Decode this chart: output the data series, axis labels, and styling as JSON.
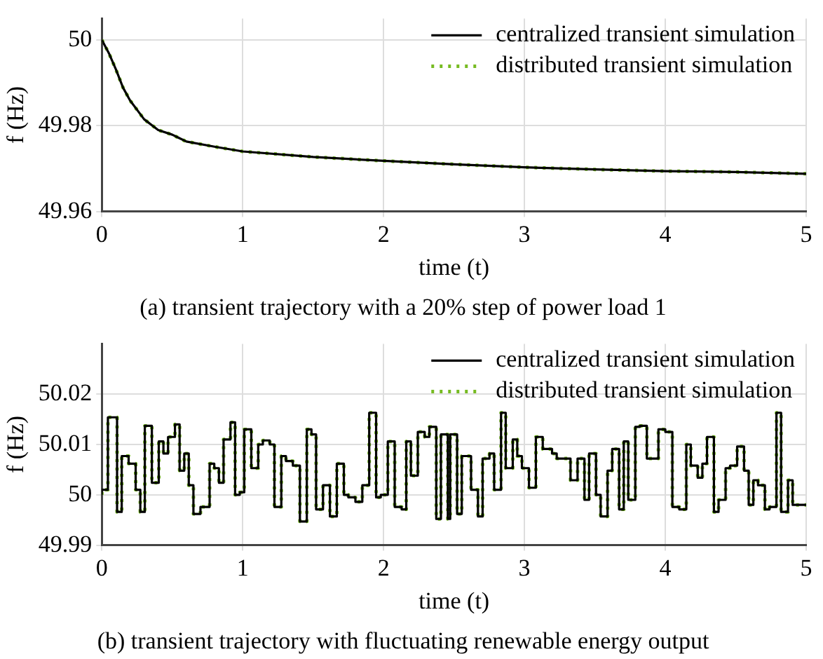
{
  "chart_data": [
    {
      "type": "line",
      "title": "(a) transient trajectory with a 20% step of power load 1",
      "xlabel": "time (t)",
      "ylabel": "f (Hz)",
      "x": [
        0,
        0.05,
        0.1,
        0.15,
        0.2,
        0.3,
        0.4,
        0.5,
        0.6,
        0.8,
        1,
        1.5,
        2,
        2.5,
        3,
        3.5,
        4,
        4.5,
        5
      ],
      "series": [
        {
          "name": "centralized transient simulation",
          "color": "#000000",
          "line_style": "solid",
          "values": [
            50,
            49.9969,
            49.9931,
            49.9889,
            49.9859,
            49.9815,
            49.979,
            49.9779,
            49.9763,
            49.9751,
            49.974,
            49.9727,
            49.9718,
            49.971,
            49.9703,
            49.9698,
            49.9694,
            49.9692,
            49.9688
          ]
        },
        {
          "name": "distributed transient simulation",
          "color": "#77bb22",
          "line_style": "dotted",
          "values": [
            50,
            49.9969,
            49.9931,
            49.9889,
            49.9859,
            49.9815,
            49.979,
            49.9779,
            49.9763,
            49.9751,
            49.974,
            49.9727,
            49.9718,
            49.971,
            49.9703,
            49.9698,
            49.9694,
            49.9692,
            49.9688
          ]
        }
      ],
      "xlim": [
        0,
        5
      ],
      "xticks": [
        0,
        1,
        2,
        3,
        4,
        5
      ],
      "ylim": [
        49.96,
        50.005
      ],
      "yticks": [
        49.96,
        49.98,
        50
      ],
      "grid": true,
      "legend": "top right",
      "marker": "none"
    },
    {
      "type": "step",
      "title": "(b) transient trajectory with fluctuating renewable energy output",
      "xlabel": "time (t)",
      "ylabel": "f (Hz)",
      "x": [
        0,
        0.043,
        0.108,
        0.141,
        0.19,
        0.24,
        0.273,
        0.305,
        0.355,
        0.404,
        0.437,
        0.47,
        0.519,
        0.552,
        0.585,
        0.617,
        0.65,
        0.7,
        0.765,
        0.798,
        0.831,
        0.864,
        0.913,
        0.946,
        0.979,
        1.011,
        1.061,
        1.11,
        1.143,
        1.192,
        1.225,
        1.274,
        1.307,
        1.356,
        1.406,
        1.455,
        1.488,
        1.521,
        1.57,
        1.619,
        1.668,
        1.718,
        1.75,
        1.8,
        1.849,
        1.898,
        1.947,
        1.98,
        2.03,
        2.079,
        2.128,
        2.161,
        2.194,
        2.243,
        2.292,
        2.325,
        2.374,
        2.407,
        2.456,
        2.473,
        2.522,
        2.555,
        2.621,
        2.67,
        2.703,
        2.752,
        2.785,
        2.834,
        2.867,
        2.917,
        2.949,
        2.982,
        3.032,
        3.081,
        3.13,
        3.196,
        3.229,
        3.327,
        3.377,
        3.426,
        3.459,
        3.508,
        3.541,
        3.59,
        3.623,
        3.672,
        3.705,
        3.737,
        3.787,
        3.82,
        3.869,
        3.951,
        4,
        4.05,
        4.099,
        4.149,
        4.181,
        4.23,
        4.263,
        4.296,
        4.345,
        4.378,
        4.428,
        4.46,
        4.51,
        4.559,
        4.592,
        4.625,
        4.658,
        4.707,
        4.74,
        4.789,
        4.822,
        4.871,
        4.904,
        4.954,
        5
      ],
      "series": [
        {
          "name": "centralized transient simulation",
          "color": "#000000",
          "line_style": "solid",
          "values": [
            50,
            50.001,
            50.0154,
            49.9966,
            50.0077,
            50.0062,
            50.001,
            49.9966,
            50.0137,
            50.0024,
            50.0106,
            50.0082,
            50.0115,
            50.014,
            50.0048,
            50.0082,
            50.0019,
            49.9962,
            49.9976,
            50.0062,
            50.0053,
            50.0024,
            50.011,
            50.0144,
            50,
            50.0005,
            50.013,
            50.0053,
            50.01,
            50.0108,
            50.01,
            49.9976,
            50.0077,
            50.0067,
            50.0058,
            49.9947,
            50.013,
            50.012,
            49.9971,
            50.0019,
            49.9957,
            50.0062,
            50,
            49.9995,
            49.9986,
            50.0019,
            50.0163,
            49.9995,
            50,
            50.0106,
            49.9976,
            49.9971,
            50.0106,
            50.0038,
            50.0125,
            50.0115,
            50.0135,
            49.9952,
            50.012,
            49.9952,
            50.012,
            49.9962,
            50.0077,
            50.001,
            49.9957,
            50.0072,
            50.0082,
            50.001,
            50.0163,
            50.0053,
            50.011,
            50.0077,
            50.0053,
            50.0014,
            50.0115,
            50.0091,
            50.0082,
            50.0072,
            50.0029,
            50.0072,
            49.999,
            50.0082,
            50,
            49.9957,
            50.0048,
            50.0091,
            49.9971,
            50.0106,
            49.999,
            50.0135,
            50.0137,
            50.0072,
            50.013,
            50.0125,
            49.9976,
            49.9971,
            50.01,
            50.0058,
            50.0034,
            50.0062,
            50.0115,
            49.9966,
            49.999,
            50.0053,
            50.0058,
            50.0096,
            50.0048,
            49.998,
            50.0029,
            50.0019,
            49.9971,
            49.9976,
            50.0163,
            49.9966,
            50.0029,
            49.998,
            49.998
          ]
        },
        {
          "name": "distributed transient simulation",
          "color": "#77bb22",
          "line_style": "dotted",
          "values": [
            50,
            50.001,
            50.0154,
            49.9966,
            50.0077,
            50.0062,
            50.001,
            49.9966,
            50.0137,
            50.0024,
            50.0106,
            50.0082,
            50.0115,
            50.014,
            50.0048,
            50.0082,
            50.0019,
            49.9962,
            49.9976,
            50.0062,
            50.0053,
            50.0024,
            50.011,
            50.0144,
            50,
            50.0005,
            50.013,
            50.0053,
            50.01,
            50.0108,
            50.01,
            49.9976,
            50.0077,
            50.0067,
            50.0058,
            49.9947,
            50.013,
            50.012,
            49.9971,
            50.0019,
            49.9957,
            50.0062,
            50,
            49.9995,
            49.9986,
            50.0019,
            50.0163,
            49.9995,
            50,
            50.0106,
            49.9976,
            49.9971,
            50.0106,
            50.0038,
            50.0125,
            50.0115,
            50.0135,
            49.9952,
            50.012,
            49.9952,
            50.012,
            49.9962,
            50.0077,
            50.001,
            49.9957,
            50.0072,
            50.0082,
            50.001,
            50.0163,
            50.0053,
            50.011,
            50.0077,
            50.0053,
            50.0014,
            50.0115,
            50.0091,
            50.0082,
            50.0072,
            50.0029,
            50.0072,
            49.999,
            50.0082,
            50,
            49.9957,
            50.0048,
            50.0091,
            49.9971,
            50.0106,
            49.999,
            50.0135,
            50.0137,
            50.0072,
            50.013,
            50.0125,
            49.9976,
            49.9971,
            50.01,
            50.0058,
            50.0034,
            50.0062,
            50.0115,
            49.9966,
            49.999,
            50.0053,
            50.0058,
            50.0096,
            50.0048,
            49.998,
            50.0029,
            50.0019,
            49.9971,
            49.9976,
            50.0163,
            49.9966,
            50.0029,
            49.998,
            49.998
          ]
        }
      ],
      "xlim": [
        0,
        5
      ],
      "xticks": [
        0,
        1,
        2,
        3,
        4,
        5
      ],
      "ylim": [
        49.99,
        50.03
      ],
      "yticks": [
        49.99,
        50,
        50.01,
        50.02
      ],
      "grid": true,
      "legend": "top right",
      "marker": "none"
    }
  ]
}
